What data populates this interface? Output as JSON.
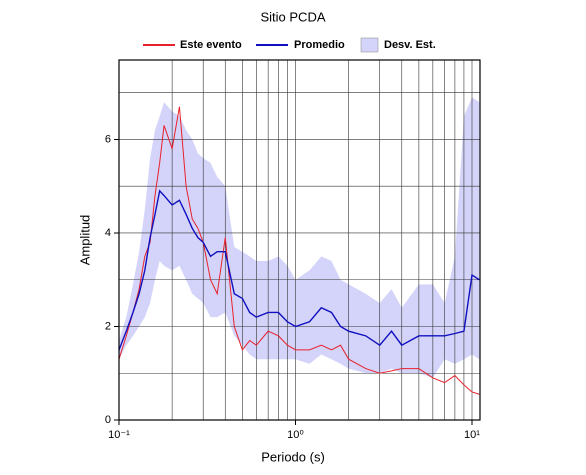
{
  "chart_data": {
    "type": "line",
    "title": "Sitio PCDA",
    "xlabel": "Periodo (s)",
    "ylabel": "Amplitud",
    "xscale": "log",
    "grid": true,
    "legend": "top",
    "x": [
      0.1,
      0.11,
      0.12,
      0.13,
      0.14,
      0.15,
      0.16,
      0.17,
      0.18,
      0.2,
      0.22,
      0.24,
      0.26,
      0.28,
      0.3,
      0.33,
      0.36,
      0.4,
      0.45,
      0.5,
      0.55,
      0.6,
      0.7,
      0.8,
      0.9,
      1.0,
      1.2,
      1.4,
      1.6,
      1.8,
      2.0,
      2.5,
      3.0,
      3.5,
      4.0,
      5.0,
      6.0,
      7.0,
      8.0,
      9.0,
      10,
      11
    ],
    "series": [
      {
        "name": "Este evento",
        "color": "#e8202a",
        "values": [
          1.3,
          1.8,
          2.3,
          2.8,
          3.5,
          3.8,
          4.8,
          5.5,
          6.3,
          5.8,
          6.7,
          5.0,
          4.3,
          4.1,
          3.8,
          3.0,
          2.7,
          3.9,
          2.0,
          1.5,
          1.7,
          1.6,
          1.9,
          1.8,
          1.6,
          1.5,
          1.5,
          1.6,
          1.5,
          1.6,
          1.3,
          1.1,
          1.0,
          1.05,
          1.1,
          1.1,
          0.9,
          0.8,
          0.95,
          0.75,
          0.6,
          0.55
        ]
      },
      {
        "name": "Promedio",
        "color": "#1010c0",
        "values": [
          1.5,
          1.9,
          2.3,
          2.7,
          3.2,
          3.9,
          4.4,
          4.9,
          4.8,
          4.6,
          4.7,
          4.4,
          4.1,
          3.9,
          3.8,
          3.5,
          3.6,
          3.6,
          2.7,
          2.6,
          2.3,
          2.2,
          2.3,
          2.3,
          2.1,
          2.0,
          2.1,
          2.4,
          2.3,
          2.0,
          1.9,
          1.8,
          1.6,
          1.9,
          1.6,
          1.8,
          1.8,
          1.8,
          1.85,
          1.9,
          3.1,
          3.0
        ]
      }
    ],
    "band": {
      "name": "Desv. Est.",
      "color": "#d4d4fa",
      "upper": [
        1.7,
        2.2,
        2.9,
        3.6,
        4.5,
        5.6,
        6.2,
        6.5,
        6.8,
        6.6,
        6.5,
        6.2,
        6.0,
        5.7,
        5.6,
        5.5,
        5.2,
        5.0,
        3.7,
        3.6,
        3.5,
        3.4,
        3.4,
        3.5,
        3.3,
        3.0,
        3.2,
        3.5,
        3.4,
        3.0,
        2.9,
        2.7,
        2.5,
        2.8,
        2.4,
        2.9,
        2.9,
        2.5,
        3.5,
        6.5,
        6.9,
        6.8
      ],
      "lower": [
        1.3,
        1.6,
        1.8,
        2.0,
        2.2,
        2.5,
        3.0,
        3.4,
        3.3,
        3.2,
        3.3,
        3.0,
        2.7,
        2.6,
        2.5,
        2.2,
        2.2,
        2.3,
        1.8,
        1.6,
        1.4,
        1.3,
        1.3,
        1.3,
        1.3,
        1.3,
        1.2,
        1.4,
        1.3,
        1.2,
        1.1,
        1.0,
        1.0,
        1.1,
        1.0,
        1.0,
        0.9,
        1.3,
        1.2,
        1.3,
        1.4,
        1.3
      ]
    },
    "xlim": [
      0.1,
      11.1
    ],
    "ylim": [
      0,
      7.7
    ],
    "xticks": [
      {
        "value": 0.1,
        "label": "10⁻¹"
      },
      {
        "value": 1,
        "label": "10⁰"
      },
      {
        "value": 10,
        "label": "10¹"
      }
    ],
    "xminor_ticks": [
      0.2,
      0.3,
      0.4,
      0.5,
      0.6,
      0.7,
      0.8,
      0.9,
      2,
      3,
      4,
      5,
      6,
      7,
      8,
      9
    ],
    "yticks": [
      0,
      2,
      4,
      6
    ],
    "yminor_ticks": [
      1,
      3,
      5,
      7
    ]
  }
}
